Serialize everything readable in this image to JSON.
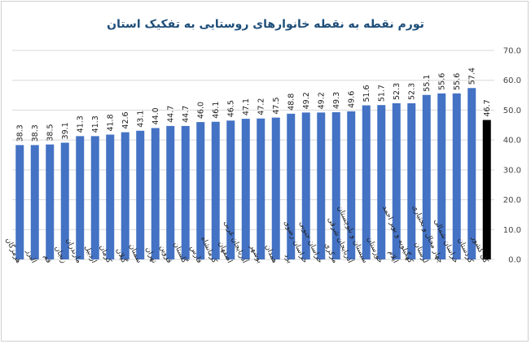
{
  "chart_data": {
    "type": "bar",
    "title": "تورم نقطه به نقطه خانوارهای روستایی به تفکیک استان",
    "categories": [
      "هرمزگان",
      "البرز",
      "قم",
      "زنجان",
      "مازندران",
      "اردبیل",
      "کرمان",
      "گیلان",
      "سمنان",
      "تهران",
      "قزوین",
      "گلستان",
      "فارس",
      "کرمانشاه",
      "اصفهان",
      "آذربایجان غربی",
      "بوشهر",
      "همدان",
      "یزد",
      "خراسان رضوی",
      "خراسان جنوبی",
      "مرکزی",
      "آذربایجان شرقی",
      "سیستان و بلوچستان",
      "خوزستان",
      "ایلام",
      "کهگیلویه و بویر احمد",
      "لرستان",
      "چهار محال و بختیاری",
      "خراسان شمالی",
      "کردستان",
      "کل کشور"
    ],
    "values": [
      38.3,
      38.3,
      38.5,
      39.1,
      41.3,
      41.3,
      41.8,
      42.6,
      43.1,
      44.0,
      44.7,
      44.7,
      46.0,
      46.1,
      46.5,
      47.1,
      47.2,
      47.5,
      48.8,
      49.2,
      49.2,
      49.3,
      49.6,
      51.6,
      51.7,
      52.3,
      52.3,
      55.1,
      55.6,
      55.6,
      57.4,
      46.7
    ],
    "value_labels": [
      "38.3",
      "38.3",
      "38.5",
      "39.1",
      "41.3",
      "41.3",
      "41.8",
      "42.6",
      "43.1",
      "44.0",
      "44.7",
      "44.7",
      "46.0",
      "46.1",
      "46.5",
      "47.1",
      "47.2",
      "47.5",
      "48.8",
      "49.2",
      "49.2",
      "49.3",
      "49.6",
      "51.6",
      "51.7",
      "52.3",
      "52.3",
      "55.1",
      "55.6",
      "55.6",
      "57.4",
      "46.7"
    ],
    "ylim": [
      0,
      70
    ],
    "yticks": [
      "0.0",
      "10.0",
      "20.0",
      "30.0",
      "40.0",
      "50.0",
      "60.0",
      "70.0"
    ],
    "y_axis_side": "right",
    "grid": true,
    "colors": {
      "bar": "#4472c4",
      "bar_highlight": "#000000",
      "title": "#1f4e79"
    },
    "highlight_index": 31
  }
}
